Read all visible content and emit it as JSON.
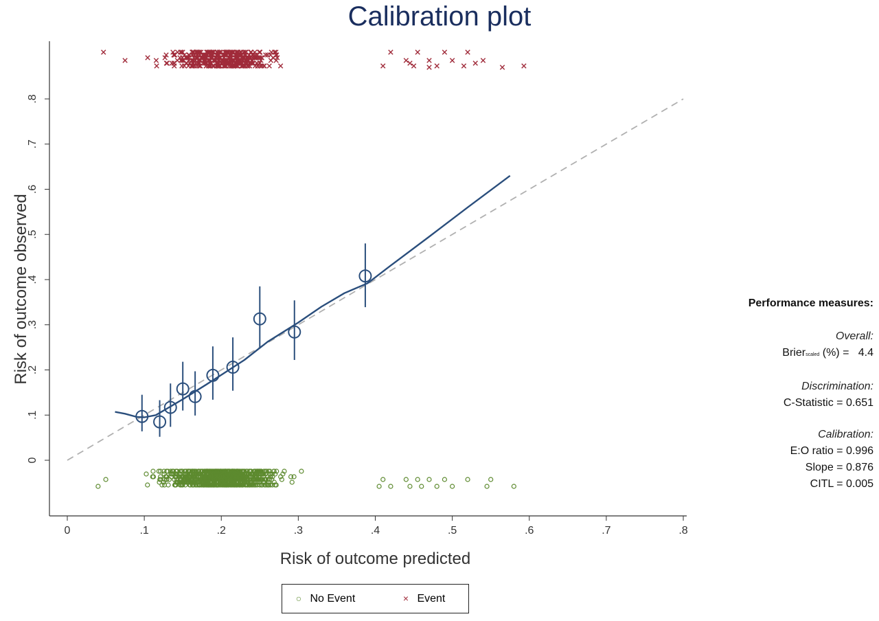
{
  "chart_data": {
    "type": "scatter",
    "title": "Calibration plot",
    "xlabel": "Risk of outcome predicted",
    "ylabel": "Risk of outcome observed",
    "xlim": [
      0,
      0.8
    ],
    "ylim": [
      0,
      0.8
    ],
    "xticks": [
      "0",
      ".1",
      ".2",
      ".3",
      ".4",
      ".5",
      ".6",
      ".7",
      ".8"
    ],
    "yticks": [
      "0",
      ".1",
      ".2",
      ".3",
      ".4",
      ".5",
      ".6",
      ".7",
      ".8"
    ],
    "grid": false,
    "reference_line": {
      "x": [
        0,
        0.8
      ],
      "y": [
        0,
        0.8
      ],
      "style": "dashed",
      "color": "#b0b0b0"
    },
    "series": [
      {
        "kind": "grouped_observed",
        "color": "#2a4e7c",
        "points": [
          {
            "x": 0.097,
            "y": 0.097,
            "lo": 0.064,
            "hi": 0.145
          },
          {
            "x": 0.12,
            "y": 0.085,
            "lo": 0.052,
            "hi": 0.133
          },
          {
            "x": 0.134,
            "y": 0.117,
            "lo": 0.074,
            "hi": 0.17
          },
          {
            "x": 0.15,
            "y": 0.158,
            "lo": 0.11,
            "hi": 0.218
          },
          {
            "x": 0.166,
            "y": 0.141,
            "lo": 0.099,
            "hi": 0.197
          },
          {
            "x": 0.189,
            "y": 0.188,
            "lo": 0.134,
            "hi": 0.252
          },
          {
            "x": 0.215,
            "y": 0.206,
            "lo": 0.154,
            "hi": 0.272
          },
          {
            "x": 0.25,
            "y": 0.313,
            "lo": 0.25,
            "hi": 0.385
          },
          {
            "x": 0.295,
            "y": 0.284,
            "lo": 0.222,
            "hi": 0.354
          },
          {
            "x": 0.387,
            "y": 0.408,
            "lo": 0.339,
            "hi": 0.48
          }
        ]
      },
      {
        "kind": "smoothed_curve",
        "color": "#2a4e7c",
        "x": [
          0.062,
          0.075,
          0.09,
          0.1,
          0.115,
          0.13,
          0.15,
          0.18,
          0.2,
          0.23,
          0.26,
          0.3,
          0.33,
          0.36,
          0.39,
          0.42,
          0.47,
          0.52,
          0.575
        ],
        "y": [
          0.107,
          0.103,
          0.096,
          0.095,
          0.1,
          0.115,
          0.135,
          0.167,
          0.189,
          0.222,
          0.262,
          0.305,
          0.34,
          0.37,
          0.392,
          0.431,
          0.495,
          0.56,
          0.63
        ]
      }
    ],
    "rug": {
      "event": {
        "color": "#a02b3a",
        "marker": "x",
        "x_range": [
          0.047,
          0.593
        ],
        "dense_range": [
          0.07,
          0.4
        ]
      },
      "no_event": {
        "color": "#5d8a2f",
        "marker": "o",
        "x_range": [
          0.04,
          0.58
        ],
        "dense_range": [
          0.06,
          0.4
        ]
      }
    },
    "legend": {
      "position": "bottom",
      "items": [
        {
          "label": "No Event",
          "marker": "o",
          "color": "#5d8a2f"
        },
        {
          "label": "Event",
          "marker": "x",
          "color": "#a02b3a"
        }
      ]
    }
  },
  "performance": {
    "heading": "Performance measures:",
    "overall_label": "Overall:",
    "brier_prefix": "Brier",
    "brier_sub": "scaled",
    "brier_suffix": "(%) =   4.4",
    "discrimination_label": "Discrimination:",
    "cstat": "C-Statistic = 0.651",
    "calibration_label": "Calibration:",
    "eo": "E:O ratio = 0.996",
    "slope": "Slope = 0.876",
    "citl": "CITL = 0.005"
  }
}
